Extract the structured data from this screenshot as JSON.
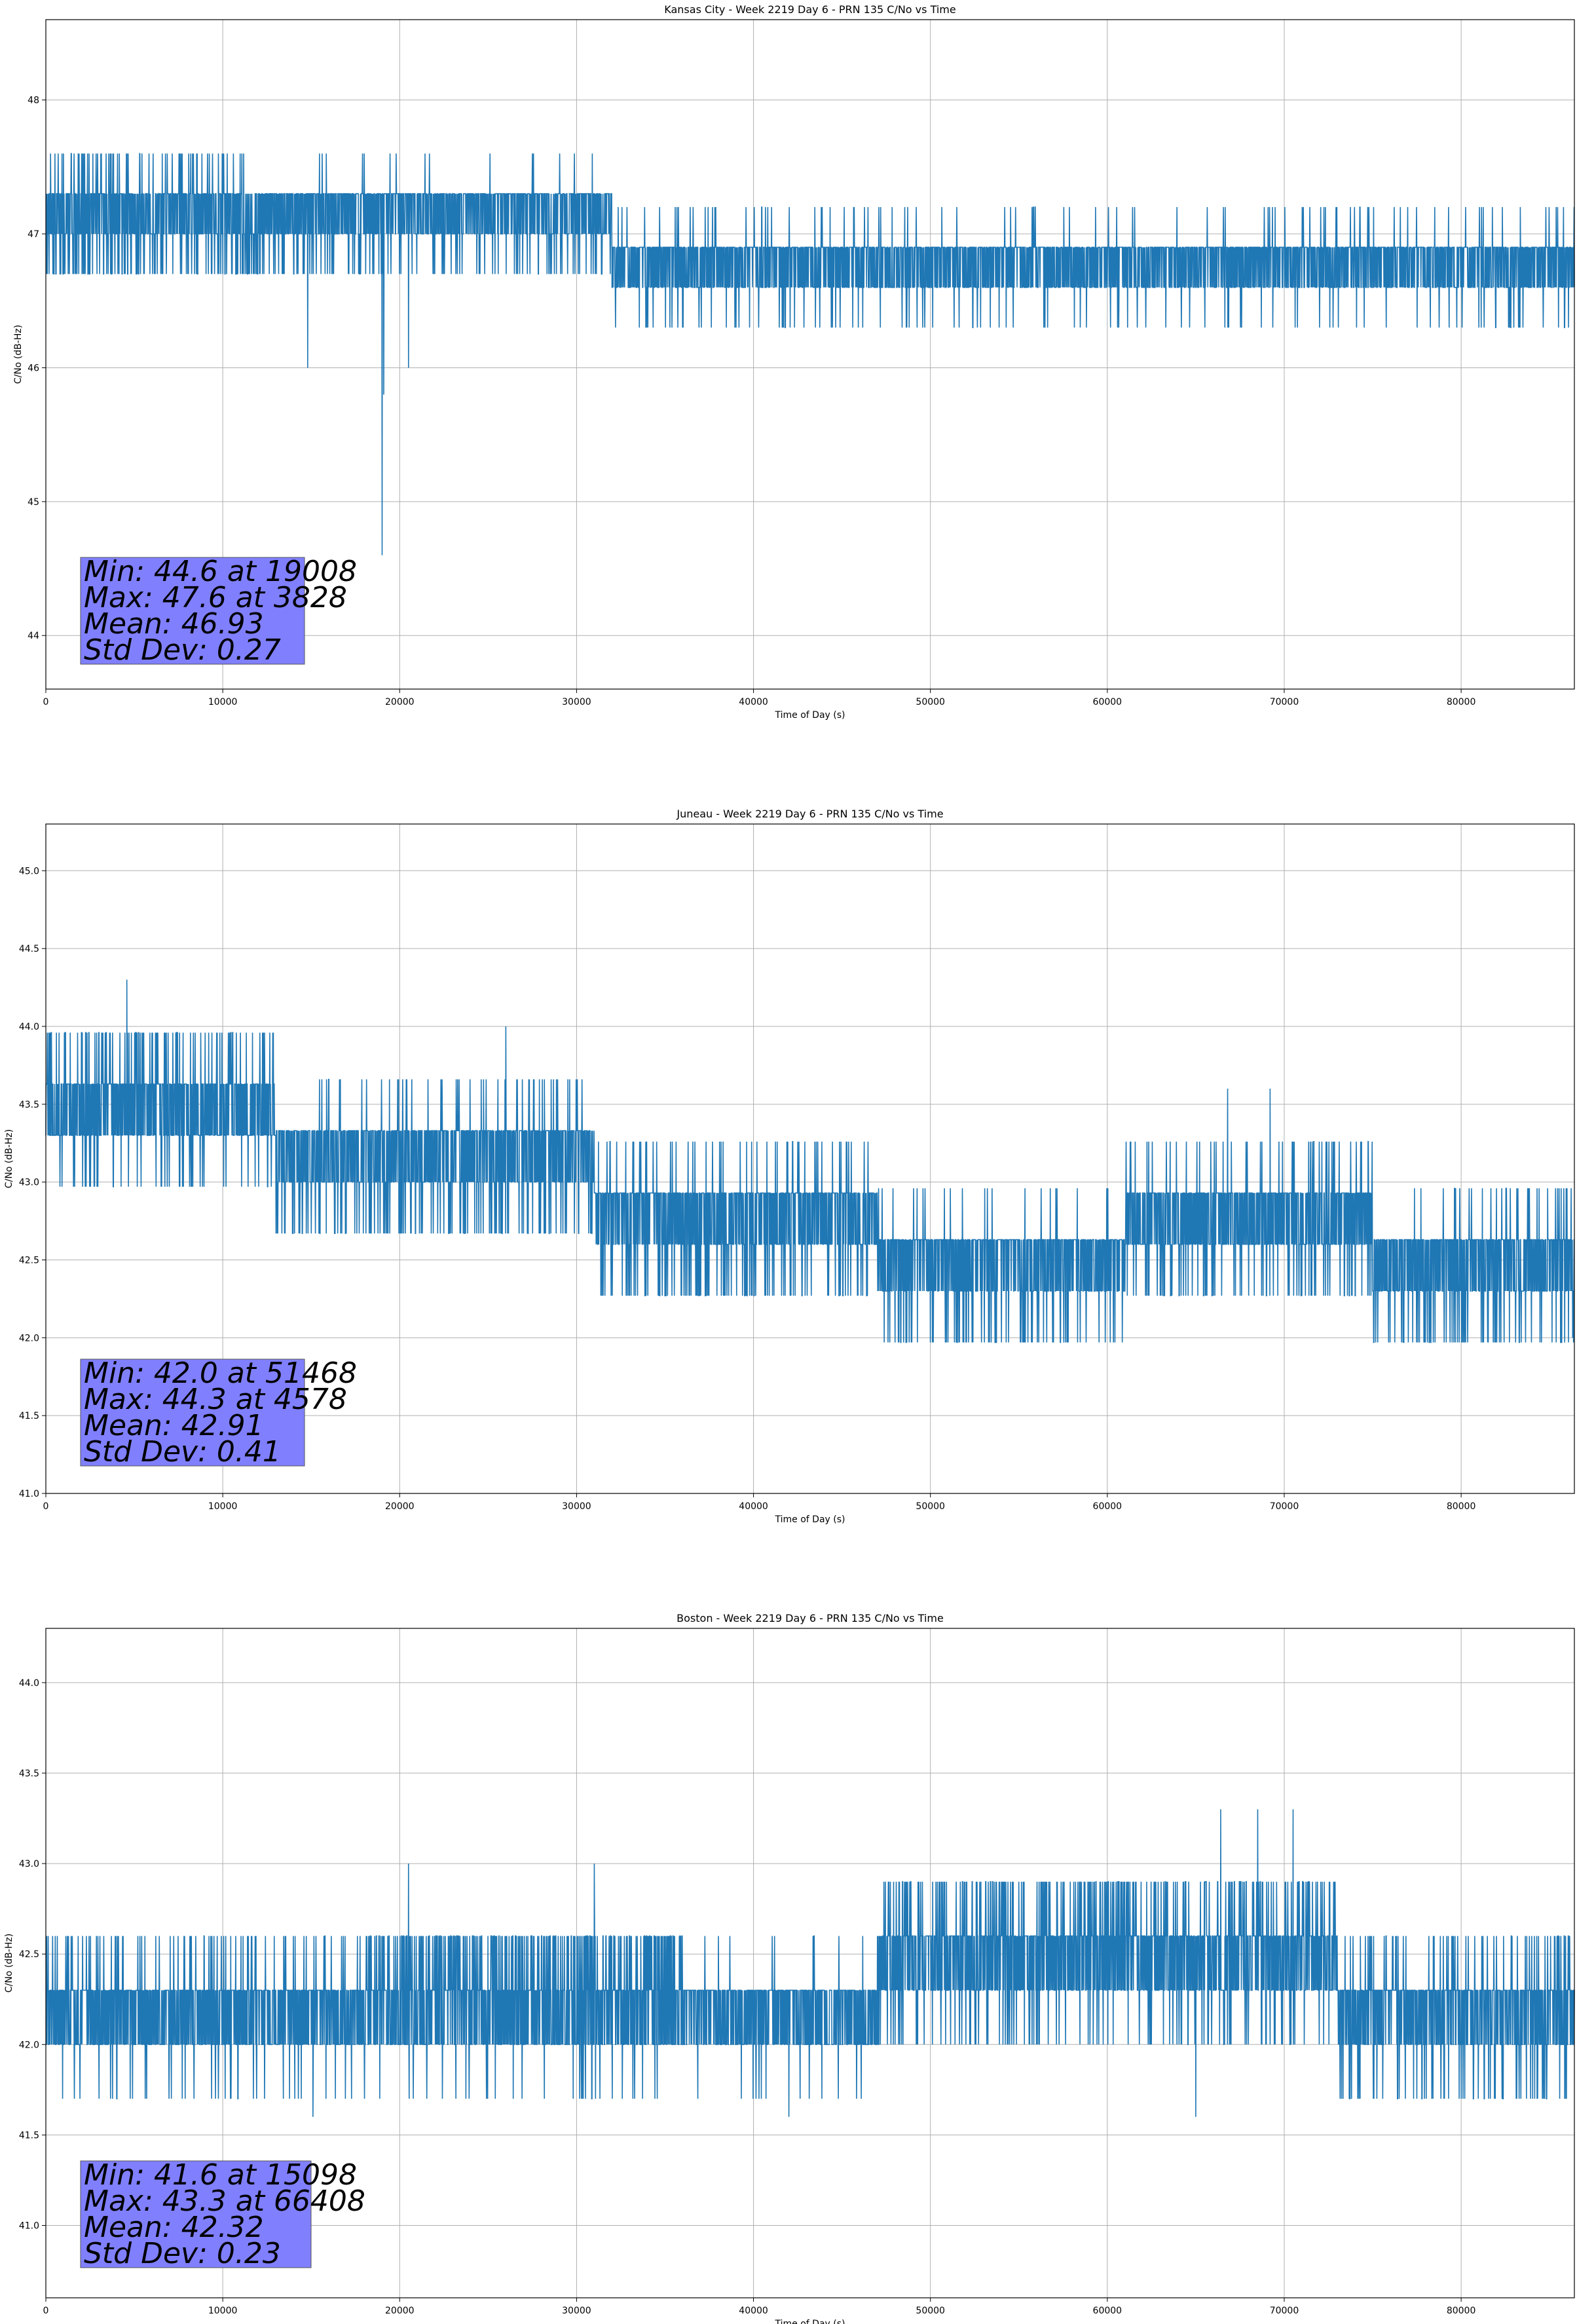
{
  "figure": {
    "background": "#ffffff",
    "line_color": "#1f77b4",
    "grid_color": "#b0b0b0",
    "stats_box_color": "#8080ff"
  },
  "chart_data": [
    {
      "type": "line",
      "title": "Kansas City - Week 2219 Day 6 - PRN 135 C/No vs Time",
      "xlabel": "Time of Day (s)",
      "ylabel": "C/No (dB-Hz)",
      "xlim": [
        0,
        86400
      ],
      "ylim": [
        43.6,
        48.6
      ],
      "xticks": [
        0,
        10000,
        20000,
        30000,
        40000,
        50000,
        60000,
        70000,
        80000
      ],
      "xtick_labels": [
        "0",
        "10000",
        "20000",
        "30000",
        "40000",
        "50000",
        "60000",
        "70000",
        "80000"
      ],
      "yticks": [
        44,
        45,
        46,
        47,
        48
      ],
      "ytick_labels": [
        "44",
        "45",
        "46",
        "47",
        "48"
      ],
      "grid": true,
      "series": [
        {
          "step_db": 0.3,
          "segments": [
            {
              "x": [
                0,
                12000
              ],
              "base": 47.0,
              "upper_prob": 0.55,
              "upper2_prob": 0.18,
              "lower_prob": 0.15,
              "lower2_prob": 0.0
            },
            {
              "x": [
                12000,
                32000
              ],
              "base": 47.0,
              "upper_prob": 0.58,
              "upper2_prob": 0.02,
              "lower_prob": 0.08,
              "lower2_prob": 0.0
            },
            {
              "x": [
                32000,
                86400
              ],
              "base": 46.6,
              "upper_prob": 0.6,
              "upper2_prob": 0.05,
              "lower_prob": 0.03,
              "lower2_prob": 0.0
            }
          ],
          "spikes": [
            [
              19008,
              44.6
            ],
            [
              19100,
              45.8
            ],
            [
              14800,
              46.0
            ],
            [
              20500,
              46.0
            ],
            [
              3828,
              47.6
            ],
            [
              27500,
              47.6
            ],
            [
              17900,
              47.6
            ],
            [
              19800,
              47.6
            ]
          ]
        }
      ],
      "stats": {
        "min": "Min: 44.6 at 19008",
        "max": "Max: 47.6 at 3828",
        "mean": "Mean: 46.93",
        "std": "Std Dev: 0.27"
      }
    },
    {
      "type": "line",
      "title": "Juneau - Week 2219 Day 6 - PRN 135 C/No vs Time",
      "xlabel": "Time of Day (s)",
      "ylabel": "C/No (dB-Hz)",
      "xlim": [
        0,
        86400
      ],
      "ylim": [
        41.0,
        45.3
      ],
      "xticks": [
        0,
        10000,
        20000,
        30000,
        40000,
        50000,
        60000,
        70000,
        80000
      ],
      "xtick_labels": [
        "0",
        "10000",
        "20000",
        "30000",
        "40000",
        "50000",
        "60000",
        "70000",
        "80000"
      ],
      "yticks": [
        41.0,
        41.5,
        42.0,
        42.5,
        43.0,
        43.5,
        44.0,
        44.5,
        45.0
      ],
      "ytick_labels": [
        "41.0",
        "41.5",
        "42.0",
        "42.5",
        "43.0",
        "43.5",
        "44.0",
        "44.5",
        "45.0"
      ],
      "grid": true,
      "series": [
        {
          "step_db": 0.33,
          "segments": [
            {
              "x": [
                0,
                13000
              ],
              "base": 43.3,
              "upper_prob": 0.55,
              "upper2_prob": 0.22,
              "lower_prob": 0.05,
              "lower2_prob": 0.0
            },
            {
              "x": [
                13000,
                31000
              ],
              "base": 43.0,
              "upper_prob": 0.55,
              "upper2_prob": 0.1,
              "lower_prob": 0.12,
              "lower2_prob": 0.0
            },
            {
              "x": [
                31000,
                47000
              ],
              "base": 42.6,
              "upper_prob": 0.55,
              "upper2_prob": 0.1,
              "lower_prob": 0.12,
              "lower2_prob": 0.0
            },
            {
              "x": [
                47000,
                61000
              ],
              "base": 42.3,
              "upper_prob": 0.6,
              "upper2_prob": 0.05,
              "lower_prob": 0.1,
              "lower2_prob": 0.0
            },
            {
              "x": [
                61000,
                75000
              ],
              "base": 42.6,
              "upper_prob": 0.55,
              "upper2_prob": 0.12,
              "lower_prob": 0.08,
              "lower2_prob": 0.0
            },
            {
              "x": [
                75000,
                86400
              ],
              "base": 42.3,
              "upper_prob": 0.55,
              "upper2_prob": 0.08,
              "lower_prob": 0.1,
              "lower2_prob": 0.0
            }
          ],
          "spikes": [
            [
              4578,
              44.3
            ],
            [
              26000,
              44.0
            ],
            [
              51468,
              42.0
            ],
            [
              66800,
              43.6
            ],
            [
              69200,
              43.6
            ],
            [
              86300,
              42.0
            ]
          ]
        }
      ],
      "stats": {
        "min": "Min: 42.0 at 51468",
        "max": "Max: 44.3 at 4578",
        "mean": "Mean: 42.91",
        "std": "Std Dev: 0.41"
      }
    },
    {
      "type": "line",
      "title": "Boston - Week 2219 Day 6 - PRN 135 C/No vs Time",
      "xlabel": "Time of Day (s)",
      "ylabel": "C/No (dB-Hz)",
      "xlim": [
        0,
        86400
      ],
      "ylim": [
        40.6,
        44.3
      ],
      "xticks": [
        0,
        10000,
        20000,
        30000,
        40000,
        50000,
        60000,
        70000,
        80000
      ],
      "xtick_labels": [
        "0",
        "10000",
        "20000",
        "30000",
        "40000",
        "50000",
        "60000",
        "70000",
        "80000"
      ],
      "yticks": [
        41.0,
        41.5,
        42.0,
        42.5,
        43.0,
        43.5,
        44.0
      ],
      "ytick_labels": [
        "41.0",
        "41.5",
        "42.0",
        "42.5",
        "43.0",
        "43.5",
        "44.0"
      ],
      "grid": true,
      "series": [
        {
          "step_db": 0.3,
          "segments": [
            {
              "x": [
                0,
                18000
              ],
              "base": 42.0,
              "upper_prob": 0.6,
              "upper2_prob": 0.12,
              "lower_prob": 0.04,
              "lower2_prob": 0.0
            },
            {
              "x": [
                18000,
                36000
              ],
              "base": 42.0,
              "upper_prob": 0.62,
              "upper2_prob": 0.4,
              "lower_prob": 0.03,
              "lower2_prob": 0.0
            },
            {
              "x": [
                36000,
                47000
              ],
              "base": 42.0,
              "upper_prob": 0.6,
              "upper2_prob": 0.03,
              "lower_prob": 0.02,
              "lower2_prob": 0.0
            },
            {
              "x": [
                47000,
                73000
              ],
              "base": 42.3,
              "upper_prob": 0.6,
              "upper2_prob": 0.25,
              "lower_prob": 0.08,
              "lower2_prob": 0.0
            },
            {
              "x": [
                73000,
                86400
              ],
              "base": 42.0,
              "upper_prob": 0.6,
              "upper2_prob": 0.15,
              "lower_prob": 0.1,
              "lower2_prob": 0.0
            }
          ],
          "spikes": [
            [
              15098,
              41.6
            ],
            [
              66408,
              43.3
            ],
            [
              68500,
              43.3
            ],
            [
              70500,
              43.3
            ],
            [
              20500,
              43.0
            ],
            [
              31000,
              43.0
            ],
            [
              65000,
              41.6
            ],
            [
              42000,
              41.6
            ]
          ]
        }
      ],
      "stats": {
        "min": "Min: 41.6 at 15098",
        "max": "Max: 43.3 at 66408",
        "mean": "Mean: 42.32",
        "std": "Std Dev: 0.23"
      }
    }
  ]
}
